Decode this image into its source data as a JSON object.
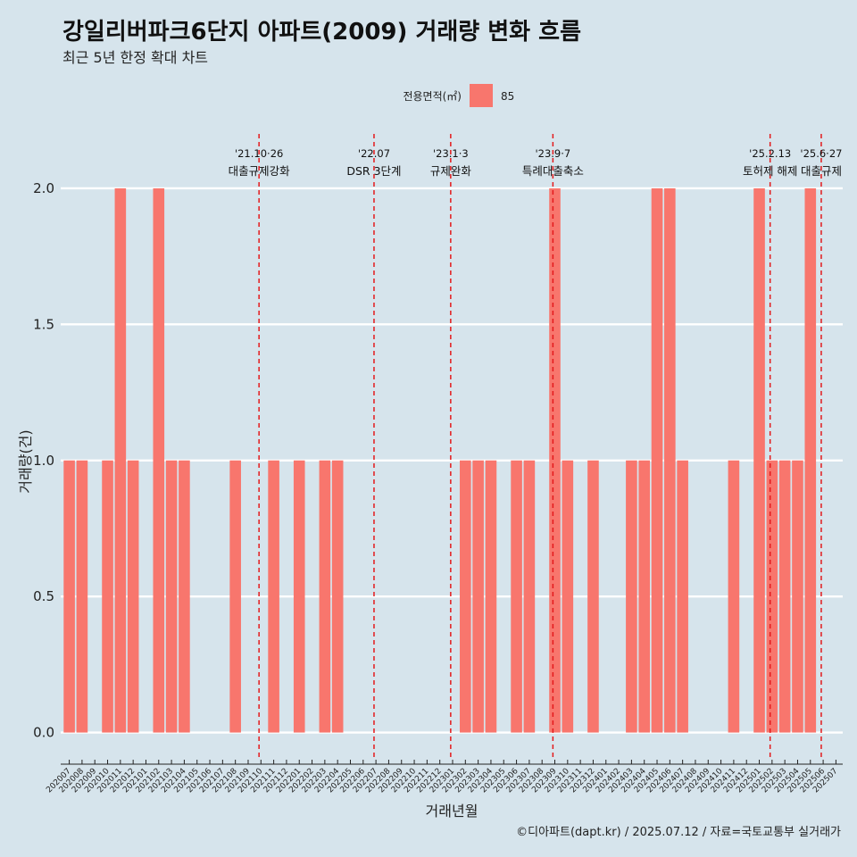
{
  "chart_data": {
    "type": "bar",
    "title": "강일리버파크6단지 아파트(2009) 거래량 변화 흐름",
    "subtitle": "최근 5년 한정 확대 차트",
    "xlabel": "거래년월",
    "ylabel": "거래량(건)",
    "ylim": [
      -0.09,
      2.2
    ],
    "yticks": [
      "0.0",
      "0.5",
      "1.0",
      "1.5",
      "2.0"
    ],
    "ytick_values": [
      0,
      0.5,
      1.0,
      1.5,
      2.0
    ],
    "legend": {
      "title": "전용면적(㎡)",
      "entries": [
        "85"
      ],
      "placement": "top"
    },
    "color": "#f8766d",
    "grid": true,
    "categories": [
      "202007",
      "202008",
      "202009",
      "202010",
      "202011",
      "202012",
      "202101",
      "202102",
      "202103",
      "202104",
      "202105",
      "202106",
      "202107",
      "202108",
      "202109",
      "202110",
      "202111",
      "202112",
      "202201",
      "202202",
      "202203",
      "202204",
      "202205",
      "202206",
      "202207",
      "202208",
      "202209",
      "202210",
      "202211",
      "202212",
      "202301",
      "202302",
      "202303",
      "202304",
      "202305",
      "202306",
      "202307",
      "202308",
      "202309",
      "202310",
      "202311",
      "202312",
      "202401",
      "202402",
      "202403",
      "202404",
      "202405",
      "202406",
      "202407",
      "202408",
      "202409",
      "202410",
      "202411",
      "202412",
      "202501",
      "202502",
      "202503",
      "202504",
      "202505",
      "202506",
      "202507"
    ],
    "values": [
      1,
      1,
      0,
      1,
      2,
      1,
      0,
      2,
      1,
      1,
      0,
      0,
      0,
      1,
      0,
      0,
      1,
      0,
      1,
      0,
      1,
      1,
      0,
      0,
      0,
      0,
      0,
      0,
      0,
      0,
      0,
      1,
      1,
      1,
      0,
      1,
      1,
      0,
      2,
      1,
      0,
      1,
      0,
      0,
      1,
      1,
      2,
      2,
      1,
      0,
      0,
      0,
      1,
      0,
      2,
      1,
      1,
      1,
      2,
      0,
      0
    ],
    "annotations": [
      {
        "category": "202110",
        "date": "'21.10·26",
        "label": "대출규제강화"
      },
      {
        "category": "202207",
        "date": "'22.07",
        "label": "DSR 3단계"
      },
      {
        "category": "202301",
        "date": "'23.1·3",
        "label": "규제완화"
      },
      {
        "category": "202309",
        "date": "'23.9·7",
        "label": "특례대출축소"
      },
      {
        "category": "202502",
        "date": "'25.2.13",
        "label": "토허제 해제"
      },
      {
        "category": "202506",
        "date": "'25.6·27",
        "label": "대출규제"
      }
    ],
    "caption": "©디아파트(dapt.kr) / 2025.07.12 / 자료=국토교통부 실거래가"
  }
}
